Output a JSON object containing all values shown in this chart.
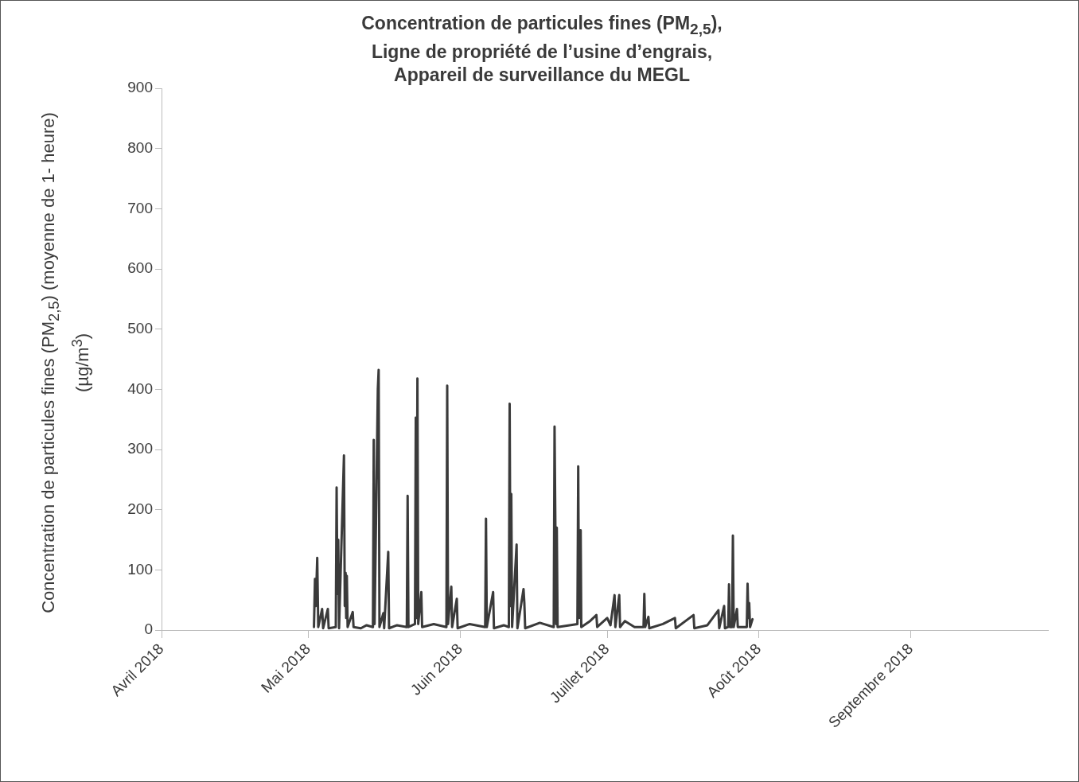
{
  "chart_data": {
    "type": "line",
    "title": "Concentration de particules fines (PM$_{2,5}$),\nLigne de propriété de l’usine d’engrais,\nAppareil de surveillance du MEGL",
    "ylabel": "Concentration de particules fines (PM$_{2,5}$) (moyenne de 1- heure)\n(µg/m$^{3}$)",
    "xlim": [
      "2018-04-01",
      "2018-09-29"
    ],
    "xticks": [
      {
        "value": "2018-04-01",
        "label": "Avril 2018"
      },
      {
        "value": "2018-05-01",
        "label": "Mai 2018"
      },
      {
        "value": "2018-06-01",
        "label": "Juin 2018"
      },
      {
        "value": "2018-07-01",
        "label": "Juillet 2018"
      },
      {
        "value": "2018-08-01",
        "label": "Août 2018"
      },
      {
        "value": "2018-09-01",
        "label": "Septembre 2018"
      }
    ],
    "ylim": [
      0,
      900
    ],
    "yticks": [
      0,
      100,
      200,
      300,
      400,
      500,
      600,
      700,
      800,
      900
    ],
    "grid": false,
    "legend": false,
    "marker": "none",
    "line_style": "solid",
    "series": [
      {
        "color": "#3a3a3a",
        "x": [
          "2018-05-02T03:00",
          "2018-05-02T08:00",
          "2018-05-02T12:00",
          "2018-05-02T19:00",
          "2018-05-03T00:00",
          "2018-05-03T19:00",
          "2018-05-04T00:00",
          "2018-05-04T23:00",
          "2018-05-05T03:00",
          "2018-05-06T14:00",
          "2018-05-06T18:00",
          "2018-05-06T22:00",
          "2018-05-07T02:00",
          "2018-05-07T06:00",
          "2018-05-08T06:00",
          "2018-05-08T10:00",
          "2018-05-08T14:00",
          "2018-05-08T17:00",
          "2018-05-08T20:00",
          "2018-05-09T00:00",
          "2018-05-10T01:00",
          "2018-05-10T05:00",
          "2018-05-11T17:00",
          "2018-05-12T21:00",
          "2018-05-14T04:00",
          "2018-05-14T08:00",
          "2018-05-14T12:00",
          "2018-05-15T04:00",
          "2018-05-15T08:00",
          "2018-05-15T12:00",
          "2018-05-16T07:00",
          "2018-05-16T11:00",
          "2018-05-17T07:00",
          "2018-05-17T11:00",
          "2018-05-19T02:00",
          "2018-05-21T02:00",
          "2018-05-21T06:00",
          "2018-05-21T10:00",
          "2018-05-22T18:00",
          "2018-05-22T22:00",
          "2018-05-23T02:00",
          "2018-05-23T06:00",
          "2018-05-23T10:00",
          "2018-05-24T01:00",
          "2018-05-24T05:00",
          "2018-05-26T14:00",
          "2018-05-29T04:00",
          "2018-05-29T08:00",
          "2018-05-29T12:00",
          "2018-05-30T04:00",
          "2018-05-30T08:00",
          "2018-05-31T07:00",
          "2018-05-31T11:00",
          "2018-06-02T22:00",
          "2018-06-06T02:00",
          "2018-06-06T06:00",
          "2018-06-06T10:00",
          "2018-06-07T17:00",
          "2018-06-07T21:00",
          "2018-06-09T21:00",
          "2018-06-10T22:00",
          "2018-06-11T02:00",
          "2018-06-11T06:00",
          "2018-06-11T10:00",
          "2018-06-11T14:00",
          "2018-06-12T12:00",
          "2018-06-12T16:00",
          "2018-06-13T22:00",
          "2018-06-14T02:00",
          "2018-06-14T06:00",
          "2018-06-17T06:00",
          "2018-06-20T02:00",
          "2018-06-20T06:00",
          "2018-06-20T14:00",
          "2018-06-20T17:00",
          "2018-06-20T21:00",
          "2018-06-24T22:00",
          "2018-06-25T02:00",
          "2018-06-25T06:00",
          "2018-06-25T14:00",
          "2018-06-25T17:00",
          "2018-06-27T12:00",
          "2018-06-28T19:00",
          "2018-06-28T23:00",
          "2018-07-01T00:00",
          "2018-07-01T16:00",
          "2018-07-02T12:00",
          "2018-07-02T16:00",
          "2018-07-03T11:00",
          "2018-07-03T15:00",
          "2018-07-04T15:00",
          "2018-07-06T14:00",
          "2018-07-08T10:00",
          "2018-07-08T14:00",
          "2018-07-08T18:00",
          "2018-07-09T10:00",
          "2018-07-09T14:00",
          "2018-07-12T09:00",
          "2018-07-14T20:00",
          "2018-07-15T00:00",
          "2018-07-18T15:00",
          "2018-07-18T19:00",
          "2018-07-21T11:00",
          "2018-07-23T17:00",
          "2018-07-23T21:00",
          "2018-07-24T21:00",
          "2018-07-25T01:00",
          "2018-07-25T17:00",
          "2018-07-25T21:00",
          "2018-07-26T01:00",
          "2018-07-26T12:00",
          "2018-07-26T16:00",
          "2018-07-26T20:00",
          "2018-07-27T12:00",
          "2018-07-27T16:00",
          "2018-07-29T12:00",
          "2018-07-29T16:00",
          "2018-07-29T20:00",
          "2018-07-30T00:00",
          "2018-07-30T04:00",
          "2018-07-30T16:00"
        ],
        "values": [
          5,
          85,
          40,
          120,
          5,
          35,
          3,
          35,
          3,
          5,
          237,
          60,
          150,
          3,
          290,
          40,
          95,
          20,
          90,
          5,
          30,
          5,
          3,
          8,
          5,
          316,
          10,
          400,
          432,
          5,
          28,
          3,
          130,
          3,
          8,
          5,
          223,
          5,
          10,
          353,
          20,
          418,
          10,
          63,
          5,
          10,
          5,
          406,
          10,
          72,
          5,
          52,
          3,
          10,
          5,
          185,
          5,
          63,
          3,
          8,
          5,
          376,
          40,
          226,
          5,
          142,
          3,
          68,
          45,
          3,
          12,
          5,
          338,
          10,
          170,
          5,
          10,
          272,
          20,
          166,
          5,
          15,
          25,
          5,
          20,
          8,
          58,
          5,
          58,
          5,
          15,
          5,
          5,
          60,
          5,
          22,
          3,
          10,
          20,
          3,
          25,
          3,
          8,
          33,
          3,
          40,
          3,
          5,
          76,
          5,
          5,
          157,
          5,
          35,
          5,
          5,
          77,
          20,
          45,
          5,
          18
        ]
      }
    ]
  }
}
